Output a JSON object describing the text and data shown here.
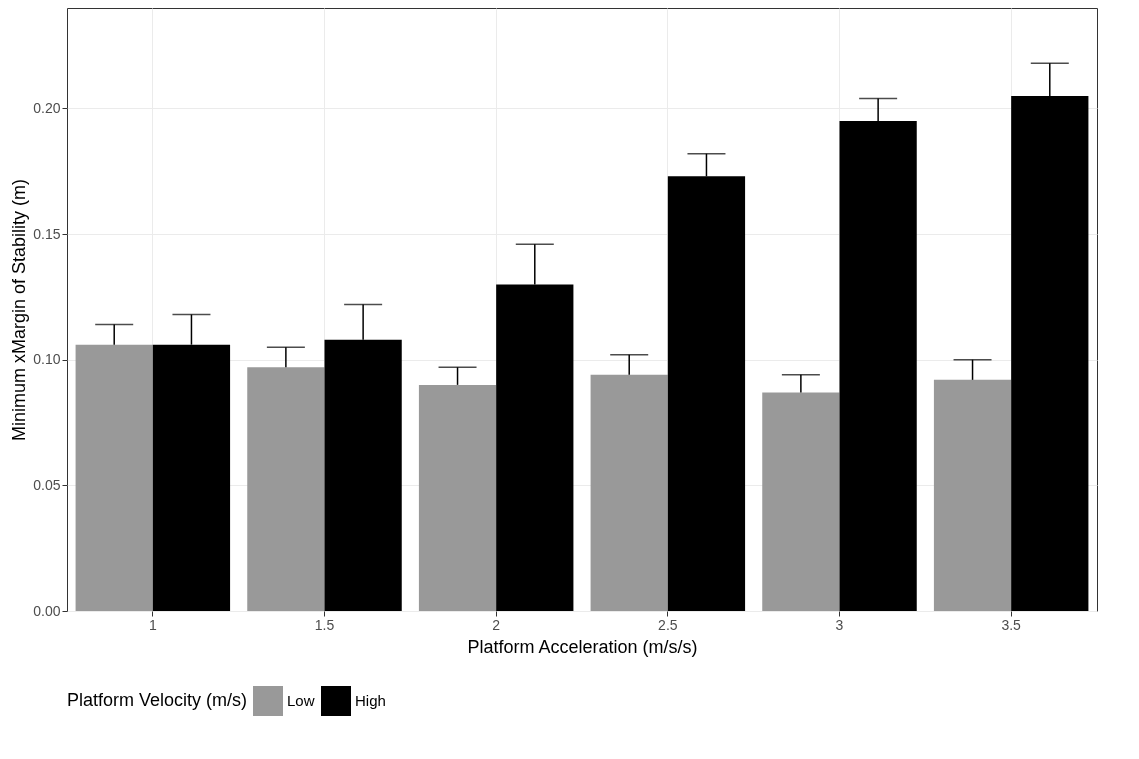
{
  "chart_data": {
    "type": "bar",
    "xlabel": "Platform Acceleration (m/s/s)",
    "ylabel": "Minimum xMargin of Stability (m)",
    "legend_title": "Platform Velocity (m/s)",
    "legend": "bottom",
    "grid": true,
    "categories": [
      "1",
      "1.5",
      "2",
      "2.5",
      "3",
      "3.5"
    ],
    "ylim": [
      0,
      0.24
    ],
    "yticks": [
      {
        "value": 0,
        "label": "0.00"
      },
      {
        "value": 0.05,
        "label": "0.05"
      },
      {
        "value": 0.1,
        "label": "0.10"
      },
      {
        "value": 0.15,
        "label": "0.15"
      },
      {
        "value": 0.2,
        "label": "0.20"
      }
    ],
    "series": [
      {
        "name": "Low",
        "color": "#999999",
        "values": [
          0.106,
          0.097,
          0.09,
          0.094,
          0.087,
          0.092
        ],
        "errors": [
          [
            0.106,
            0.114
          ],
          [
            0.097,
            0.105
          ],
          [
            0.09,
            0.097
          ],
          [
            0.094,
            0.102
          ],
          [
            0.087,
            0.094
          ],
          [
            0.092,
            0.1
          ]
        ]
      },
      {
        "name": "High",
        "color": "#000000",
        "values": [
          0.106,
          0.108,
          0.13,
          0.173,
          0.195,
          0.205
        ],
        "errors": [
          [
            0.106,
            0.118
          ],
          [
            0.108,
            0.122
          ],
          [
            0.13,
            0.146
          ],
          [
            0.173,
            0.182
          ],
          [
            0.195,
            0.204
          ],
          [
            0.205,
            0.218
          ]
        ]
      }
    ]
  }
}
